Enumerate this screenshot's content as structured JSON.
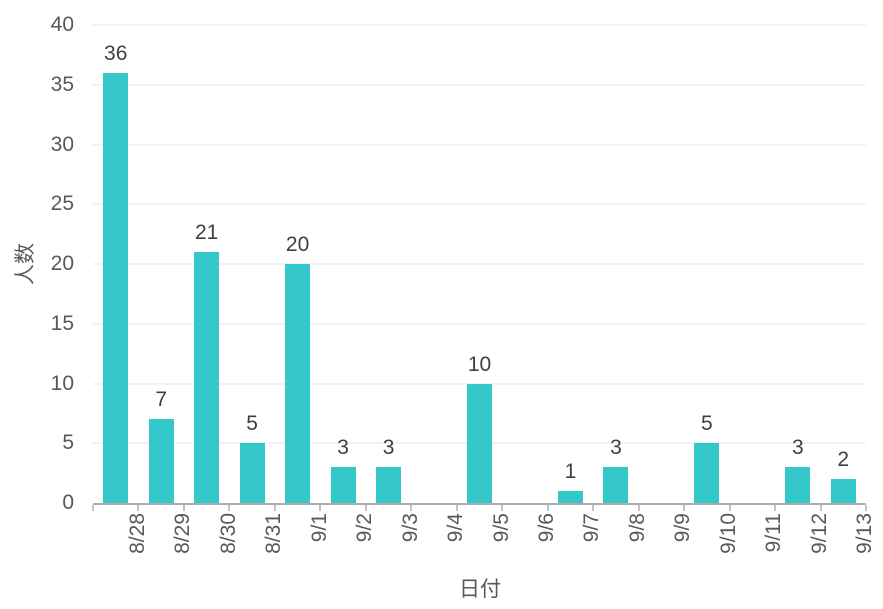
{
  "chart_data": {
    "type": "bar",
    "categories": [
      "8/28",
      "8/29",
      "8/30",
      "8/31",
      "9/1",
      "9/2",
      "9/3",
      "9/4",
      "9/5",
      "9/6",
      "9/7",
      "9/8",
      "9/9",
      "9/10",
      "9/11",
      "9/12",
      "9/13"
    ],
    "values": [
      36,
      7,
      21,
      5,
      20,
      3,
      3,
      0,
      10,
      0,
      1,
      3,
      0,
      5,
      0,
      3,
      2
    ],
    "data_labels": [
      36,
      7,
      21,
      5,
      20,
      3,
      3,
      null,
      10,
      null,
      1,
      3,
      null,
      5,
      null,
      3,
      2
    ],
    "title": "",
    "xlabel": "日付",
    "ylabel": "人数",
    "ylim": [
      0,
      40
    ],
    "yticks": [
      0,
      5,
      10,
      15,
      20,
      25,
      30,
      35,
      40
    ],
    "grid": "horizontal",
    "legend": "none",
    "colors": {
      "bar": "#35c8ca",
      "gridline": "#f2f2f2",
      "axis_line": "#adadad",
      "tick_mark": "#c3c3c3",
      "tick_text": "#595959",
      "data_label_text": "#404040",
      "background": "#ffffff"
    }
  }
}
